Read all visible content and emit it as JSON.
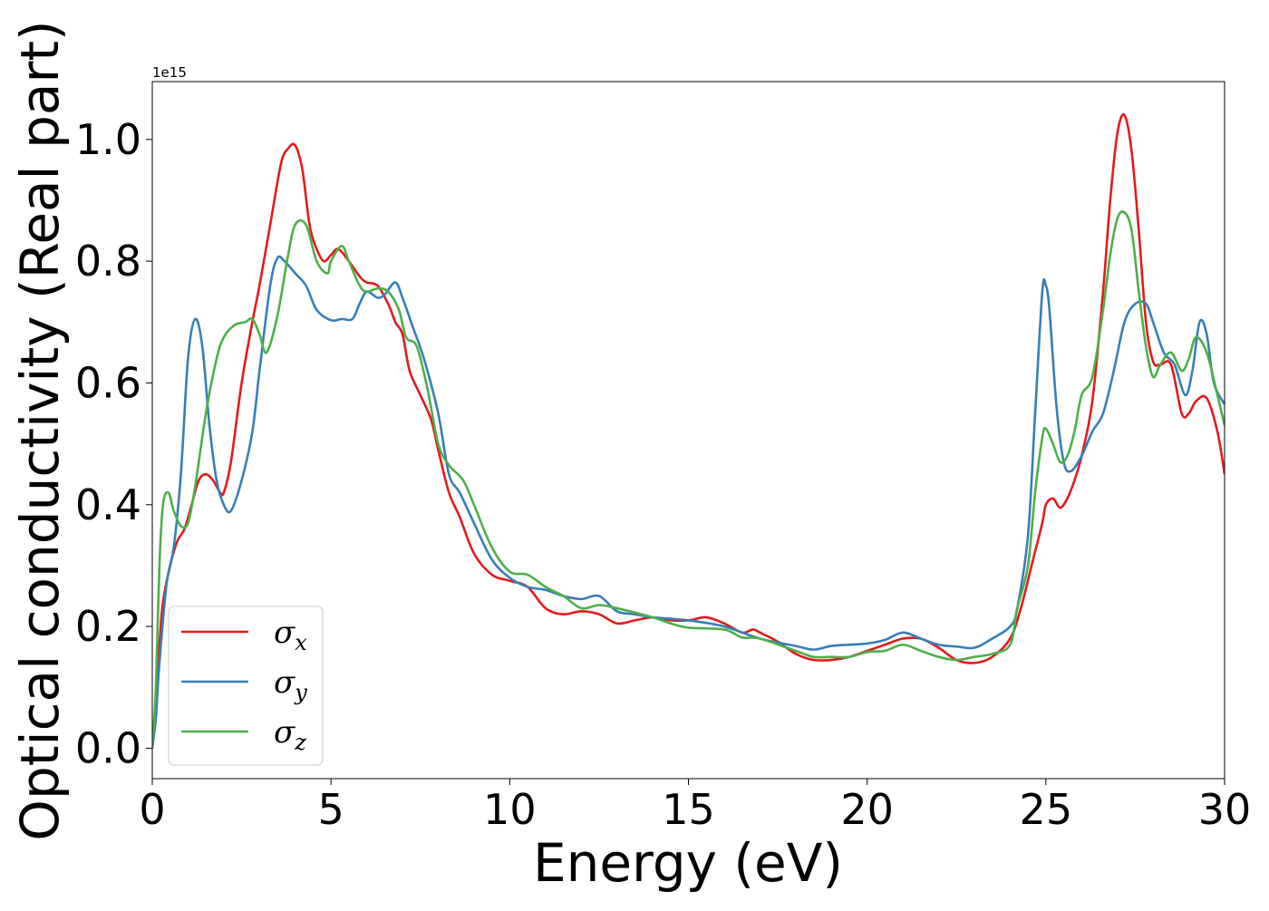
{
  "chart_data": {
    "type": "line",
    "xlabel": "Energy (eV)",
    "ylabel": "Optical conductivity (Real part)",
    "offset_text": "1e15",
    "xlim": [
      0,
      30
    ],
    "ylim": [
      -0.05,
      1.095
    ],
    "xticks": [
      0,
      5,
      10,
      15,
      20,
      25,
      30
    ],
    "xtick_labels": [
      "0",
      "5",
      "10",
      "15",
      "20",
      "25",
      "30"
    ],
    "yticks": [
      0.0,
      0.2,
      0.4,
      0.6,
      0.8,
      1.0
    ],
    "ytick_labels": [
      "0.0",
      "0.2",
      "0.4",
      "0.6",
      "0.8",
      "1.0"
    ],
    "grid": false,
    "legend": {
      "position": "lower-left",
      "entries": [
        {
          "symbol": "σ",
          "subscript": "x",
          "color": "#e41a1c"
        },
        {
          "symbol": "σ",
          "subscript": "y",
          "color": "#377eb8"
        },
        {
          "symbol": "σ",
          "subscript": "z",
          "color": "#4daf4a"
        }
      ]
    },
    "series": [
      {
        "color": "#e41a1c",
        "x": [
          0,
          0.1,
          0.2,
          0.3,
          0.5,
          0.7,
          0.9,
          1.1,
          1.3,
          1.5,
          1.7,
          1.9,
          2.0,
          2.2,
          2.5,
          2.8,
          3.0,
          3.3,
          3.6,
          3.8,
          4.0,
          4.2,
          4.4,
          4.6,
          4.8,
          5.0,
          5.2,
          5.5,
          5.8,
          6.0,
          6.3,
          6.6,
          6.8,
          7.0,
          7.2,
          7.5,
          7.8,
          8.0,
          8.3,
          8.6,
          9.0,
          9.5,
          10.0,
          10.5,
          11.0,
          11.5,
          12.0,
          12.5,
          13.0,
          13.5,
          14.0,
          14.5,
          15.0,
          15.5,
          16.0,
          16.5,
          16.8,
          17.0,
          17.5,
          18.0,
          18.5,
          19.0,
          19.5,
          20.0,
          20.5,
          21.0,
          21.5,
          22.0,
          22.5,
          23.0,
          23.5,
          24.0,
          24.3,
          24.6,
          24.9,
          25.0,
          25.2,
          25.4,
          25.6,
          25.8,
          26.0,
          26.3,
          26.6,
          26.8,
          27.0,
          27.2,
          27.4,
          27.6,
          27.8,
          28.0,
          28.2,
          28.5,
          28.8,
          29.0,
          29.2,
          29.5,
          29.8,
          30.0
        ],
        "y": [
          0.0,
          0.08,
          0.17,
          0.24,
          0.3,
          0.34,
          0.36,
          0.4,
          0.44,
          0.45,
          0.44,
          0.42,
          0.42,
          0.47,
          0.6,
          0.7,
          0.76,
          0.86,
          0.96,
          0.985,
          0.99,
          0.95,
          0.86,
          0.82,
          0.8,
          0.81,
          0.82,
          0.8,
          0.775,
          0.765,
          0.76,
          0.73,
          0.7,
          0.68,
          0.62,
          0.58,
          0.54,
          0.49,
          0.42,
          0.38,
          0.32,
          0.285,
          0.275,
          0.265,
          0.23,
          0.22,
          0.225,
          0.22,
          0.205,
          0.21,
          0.215,
          0.21,
          0.21,
          0.215,
          0.205,
          0.19,
          0.195,
          0.19,
          0.175,
          0.155,
          0.145,
          0.145,
          0.15,
          0.16,
          0.17,
          0.18,
          0.18,
          0.165,
          0.145,
          0.14,
          0.15,
          0.18,
          0.23,
          0.3,
          0.37,
          0.4,
          0.41,
          0.395,
          0.41,
          0.44,
          0.48,
          0.57,
          0.75,
          0.9,
          1.01,
          1.04,
          0.98,
          0.85,
          0.7,
          0.635,
          0.63,
          0.63,
          0.55,
          0.55,
          0.57,
          0.575,
          0.52,
          0.45
        ]
      },
      {
        "color": "#377eb8",
        "x": [
          0,
          0.1,
          0.2,
          0.4,
          0.6,
          0.8,
          1.0,
          1.2,
          1.4,
          1.6,
          1.8,
          2.0,
          2.2,
          2.5,
          2.8,
          3.0,
          3.3,
          3.5,
          3.7,
          4.0,
          4.3,
          4.6,
          5.0,
          5.3,
          5.6,
          5.8,
          6.0,
          6.3,
          6.5,
          6.8,
          7.0,
          7.3,
          7.6,
          8.0,
          8.3,
          8.6,
          9.0,
          9.5,
          10.0,
          10.5,
          11.0,
          11.5,
          12.0,
          12.5,
          13.0,
          13.5,
          14.0,
          15.0,
          16.0,
          17.0,
          18.0,
          18.5,
          19.0,
          19.5,
          20.0,
          20.5,
          21.0,
          21.5,
          22.0,
          22.5,
          23.0,
          23.5,
          24.0,
          24.2,
          24.5,
          24.7,
          24.9,
          25.0,
          25.1,
          25.3,
          25.5,
          25.7,
          26.0,
          26.3,
          26.6,
          26.9,
          27.2,
          27.5,
          27.8,
          28.0,
          28.3,
          28.6,
          28.9,
          29.1,
          29.3,
          29.5,
          29.7,
          30.0
        ],
        "y": [
          0.0,
          0.05,
          0.14,
          0.27,
          0.33,
          0.45,
          0.64,
          0.705,
          0.66,
          0.53,
          0.44,
          0.4,
          0.39,
          0.44,
          0.52,
          0.62,
          0.76,
          0.805,
          0.8,
          0.78,
          0.76,
          0.72,
          0.703,
          0.705,
          0.705,
          0.73,
          0.75,
          0.74,
          0.745,
          0.765,
          0.74,
          0.69,
          0.64,
          0.55,
          0.45,
          0.42,
          0.37,
          0.31,
          0.28,
          0.265,
          0.26,
          0.25,
          0.245,
          0.25,
          0.225,
          0.22,
          0.215,
          0.21,
          0.2,
          0.18,
          0.168,
          0.162,
          0.168,
          0.17,
          0.172,
          0.178,
          0.19,
          0.18,
          0.17,
          0.167,
          0.165,
          0.18,
          0.2,
          0.23,
          0.35,
          0.55,
          0.75,
          0.76,
          0.72,
          0.56,
          0.47,
          0.455,
          0.48,
          0.52,
          0.55,
          0.62,
          0.7,
          0.73,
          0.73,
          0.7,
          0.65,
          0.63,
          0.58,
          0.62,
          0.7,
          0.68,
          0.6,
          0.565
        ]
      },
      {
        "color": "#4daf4a",
        "x": [
          0,
          0.1,
          0.2,
          0.3,
          0.45,
          0.6,
          0.8,
          1.0,
          1.2,
          1.5,
          1.8,
          2.0,
          2.3,
          2.6,
          2.8,
          3.0,
          3.2,
          3.5,
          3.8,
          4.0,
          4.3,
          4.6,
          4.9,
          5.0,
          5.3,
          5.5,
          5.8,
          6.0,
          6.3,
          6.6,
          6.9,
          7.1,
          7.4,
          7.7,
          8.0,
          8.3,
          8.7,
          9.0,
          9.5,
          10.0,
          10.5,
          11.0,
          11.5,
          12.0,
          12.5,
          13.0,
          14.0,
          14.5,
          15.0,
          16.0,
          16.5,
          17.0,
          18.0,
          18.5,
          19.0,
          19.5,
          20.0,
          20.5,
          21.0,
          21.5,
          22.0,
          22.5,
          23.0,
          23.5,
          24.0,
          24.2,
          24.5,
          24.7,
          24.9,
          25.0,
          25.2,
          25.4,
          25.6,
          25.8,
          26.0,
          26.3,
          26.6,
          26.8,
          27.0,
          27.2,
          27.4,
          27.6,
          27.8,
          28.0,
          28.2,
          28.5,
          28.8,
          29.0,
          29.2,
          29.5,
          29.8,
          30.0
        ],
        "y": [
          0.0,
          0.1,
          0.3,
          0.4,
          0.42,
          0.39,
          0.365,
          0.37,
          0.43,
          0.55,
          0.64,
          0.675,
          0.695,
          0.7,
          0.705,
          0.68,
          0.65,
          0.71,
          0.81,
          0.86,
          0.86,
          0.8,
          0.78,
          0.8,
          0.825,
          0.8,
          0.76,
          0.75,
          0.755,
          0.75,
          0.72,
          0.675,
          0.66,
          0.59,
          0.5,
          0.465,
          0.44,
          0.4,
          0.33,
          0.29,
          0.285,
          0.265,
          0.25,
          0.23,
          0.235,
          0.23,
          0.215,
          0.205,
          0.198,
          0.195,
          0.182,
          0.18,
          0.16,
          0.15,
          0.15,
          0.15,
          0.158,
          0.16,
          0.17,
          0.16,
          0.15,
          0.145,
          0.15,
          0.155,
          0.17,
          0.23,
          0.3,
          0.42,
          0.51,
          0.525,
          0.5,
          0.47,
          0.48,
          0.52,
          0.58,
          0.61,
          0.72,
          0.81,
          0.87,
          0.88,
          0.85,
          0.75,
          0.66,
          0.61,
          0.63,
          0.65,
          0.62,
          0.64,
          0.675,
          0.65,
          0.58,
          0.53
        ]
      }
    ]
  }
}
